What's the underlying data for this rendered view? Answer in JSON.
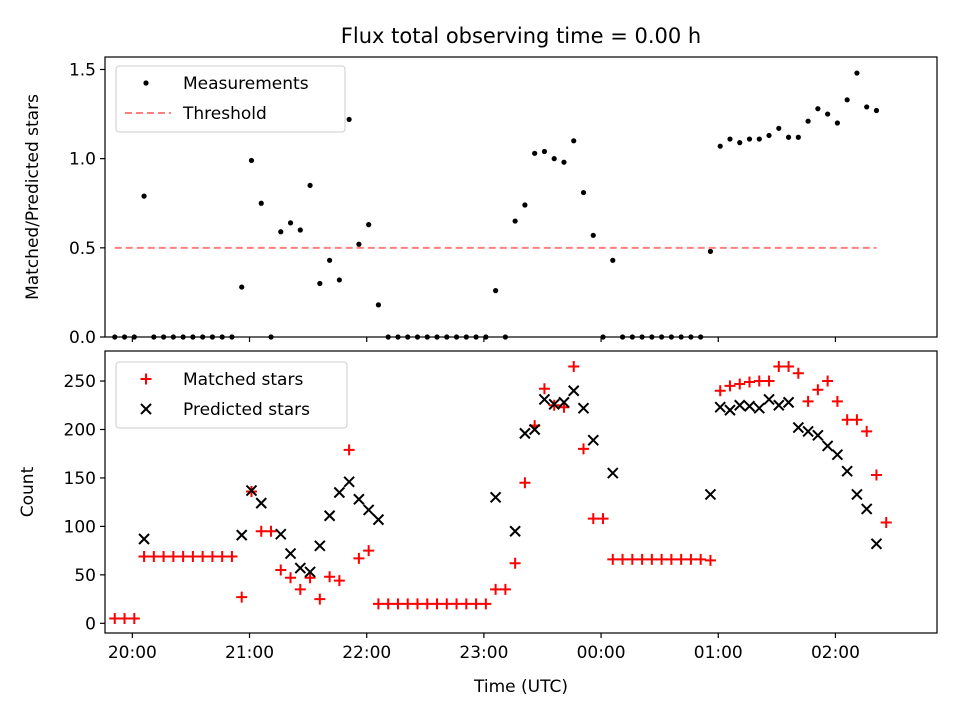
{
  "chart_data": [
    {
      "type": "scatter",
      "title": "Flux total observing time = 0.00 h",
      "xlabel": "",
      "ylabel": "Matched/Predicted stars",
      "ylim": [
        0,
        1.57
      ],
      "xlim": [
        "19:46",
        "02:52"
      ],
      "yticks": [
        0.0,
        0.5,
        1.0,
        1.5
      ],
      "ytick_labels": [
        "0.0",
        "0.5",
        "1.0",
        "1.5"
      ],
      "xticks": [
        "20:00",
        "21:00",
        "22:00",
        "23:00",
        "00:00",
        "01:00",
        "02:00"
      ],
      "show_xtick_labels": false,
      "grid": false,
      "legend": "upper-left",
      "series": [
        {
          "name": "Measurements",
          "style": "dot",
          "color": "#000000",
          "points": [
            [
              "19:51",
              0.0
            ],
            [
              "19:56",
              0.0
            ],
            [
              "20:01",
              0.0
            ],
            [
              "20:06",
              0.79
            ],
            [
              "20:11",
              0.0
            ],
            [
              "20:16",
              0.0
            ],
            [
              "20:21",
              0.0
            ],
            [
              "20:26",
              0.0
            ],
            [
              "20:31",
              0.0
            ],
            [
              "20:36",
              0.0
            ],
            [
              "20:41",
              0.0
            ],
            [
              "20:46",
              0.0
            ],
            [
              "20:51",
              0.0
            ],
            [
              "20:56",
              0.28
            ],
            [
              "21:01",
              0.99
            ],
            [
              "21:06",
              0.75
            ],
            [
              "21:11",
              0.0
            ],
            [
              "21:16",
              0.59
            ],
            [
              "21:21",
              0.64
            ],
            [
              "21:26",
              0.6
            ],
            [
              "21:31",
              0.85
            ],
            [
              "21:36",
              0.3
            ],
            [
              "21:41",
              0.43
            ],
            [
              "21:46",
              0.32
            ],
            [
              "21:51",
              1.22
            ],
            [
              "21:56",
              0.52
            ],
            [
              "22:01",
              0.63
            ],
            [
              "22:06",
              0.18
            ],
            [
              "22:11",
              0.0
            ],
            [
              "22:16",
              0.0
            ],
            [
              "22:21",
              0.0
            ],
            [
              "22:26",
              0.0
            ],
            [
              "22:31",
              0.0
            ],
            [
              "22:36",
              0.0
            ],
            [
              "22:41",
              0.0
            ],
            [
              "22:46",
              0.0
            ],
            [
              "22:51",
              0.0
            ],
            [
              "22:56",
              0.0
            ],
            [
              "23:01",
              0.0
            ],
            [
              "23:06",
              0.26
            ],
            [
              "23:11",
              0.0
            ],
            [
              "23:16",
              0.65
            ],
            [
              "23:21",
              0.74
            ],
            [
              "23:26",
              1.03
            ],
            [
              "23:31",
              1.04
            ],
            [
              "23:36",
              1.0
            ],
            [
              "23:41",
              0.98
            ],
            [
              "23:46",
              1.1
            ],
            [
              "23:51",
              0.81
            ],
            [
              "23:56",
              0.57
            ],
            [
              "00:01",
              0.0
            ],
            [
              "00:06",
              0.43
            ],
            [
              "00:11",
              0.0
            ],
            [
              "00:16",
              0.0
            ],
            [
              "00:21",
              0.0
            ],
            [
              "00:26",
              0.0
            ],
            [
              "00:31",
              0.0
            ],
            [
              "00:36",
              0.0
            ],
            [
              "00:41",
              0.0
            ],
            [
              "00:46",
              0.0
            ],
            [
              "00:51",
              0.0
            ],
            [
              "00:56",
              0.48
            ],
            [
              "01:01",
              1.07
            ],
            [
              "01:06",
              1.11
            ],
            [
              "01:11",
              1.09
            ],
            [
              "01:16",
              1.11
            ],
            [
              "01:21",
              1.11
            ],
            [
              "01:26",
              1.13
            ],
            [
              "01:31",
              1.17
            ],
            [
              "01:36",
              1.12
            ],
            [
              "01:41",
              1.12
            ],
            [
              "01:46",
              1.21
            ],
            [
              "01:51",
              1.28
            ],
            [
              "01:56",
              1.25
            ],
            [
              "02:01",
              1.2
            ],
            [
              "02:06",
              1.33
            ],
            [
              "02:11",
              1.48
            ],
            [
              "02:16",
              1.29
            ],
            [
              "02:21",
              1.27
            ]
          ]
        },
        {
          "name": "Threshold",
          "style": "dashed-line",
          "color": "#ff7f7f",
          "points": [
            [
              "19:51",
              0.5
            ],
            [
              "02:21",
              0.5
            ]
          ]
        }
      ]
    },
    {
      "type": "scatter",
      "title": "",
      "xlabel": "Time (UTC)",
      "ylabel": "Count",
      "ylim": [
        -10,
        281
      ],
      "xlim": [
        "19:46",
        "02:52"
      ],
      "yticks": [
        0,
        50,
        100,
        150,
        200,
        250
      ],
      "ytick_labels": [
        "0",
        "50",
        "100",
        "150",
        "200",
        "250"
      ],
      "xticks": [
        "20:00",
        "21:00",
        "22:00",
        "23:00",
        "00:00",
        "01:00",
        "02:00"
      ],
      "xtick_labels": [
        "20:00",
        "21:00",
        "22:00",
        "23:00",
        "00:00",
        "01:00",
        "02:00"
      ],
      "grid": false,
      "legend": "upper-left",
      "series": [
        {
          "name": "Matched stars",
          "style": "plus",
          "color": "#ff0000",
          "points": [
            [
              "19:51",
              5
            ],
            [
              "19:56",
              5
            ],
            [
              "20:01",
              5
            ],
            [
              "20:06",
              69
            ],
            [
              "20:11",
              69
            ],
            [
              "20:16",
              69
            ],
            [
              "20:21",
              69
            ],
            [
              "20:26",
              69
            ],
            [
              "20:31",
              69
            ],
            [
              "20:36",
              69
            ],
            [
              "20:41",
              69
            ],
            [
              "20:46",
              69
            ],
            [
              "20:51",
              69
            ],
            [
              "20:56",
              27
            ],
            [
              "21:01",
              136
            ],
            [
              "21:06",
              95
            ],
            [
              "21:11",
              95
            ],
            [
              "21:16",
              55
            ],
            [
              "21:21",
              47
            ],
            [
              "21:26",
              35
            ],
            [
              "21:31",
              47
            ],
            [
              "21:36",
              25
            ],
            [
              "21:41",
              48
            ],
            [
              "21:46",
              44
            ],
            [
              "21:51",
              179
            ],
            [
              "21:56",
              67
            ],
            [
              "22:01",
              75
            ],
            [
              "22:06",
              20
            ],
            [
              "22:11",
              20
            ],
            [
              "22:16",
              20
            ],
            [
              "22:21",
              20
            ],
            [
              "22:26",
              20
            ],
            [
              "22:31",
              20
            ],
            [
              "22:36",
              20
            ],
            [
              "22:41",
              20
            ],
            [
              "22:46",
              20
            ],
            [
              "22:51",
              20
            ],
            [
              "22:56",
              20
            ],
            [
              "23:01",
              20
            ],
            [
              "23:06",
              35
            ],
            [
              "23:11",
              35
            ],
            [
              "23:16",
              62
            ],
            [
              "23:21",
              145
            ],
            [
              "23:26",
              204
            ],
            [
              "23:31",
              242
            ],
            [
              "23:36",
              225
            ],
            [
              "23:41",
              223
            ],
            [
              "23:46",
              265
            ],
            [
              "23:51",
              180
            ],
            [
              "23:56",
              108
            ],
            [
              "00:01",
              108
            ],
            [
              "00:06",
              66
            ],
            [
              "00:11",
              66
            ],
            [
              "00:16",
              66
            ],
            [
              "00:21",
              66
            ],
            [
              "00:26",
              66
            ],
            [
              "00:31",
              66
            ],
            [
              "00:36",
              66
            ],
            [
              "00:41",
              66
            ],
            [
              "00:46",
              66
            ],
            [
              "00:51",
              66
            ],
            [
              "00:56",
              65
            ],
            [
              "01:01",
              240
            ],
            [
              "01:06",
              245
            ],
            [
              "01:11",
              247
            ],
            [
              "01:16",
              249
            ],
            [
              "01:21",
              250
            ],
            [
              "01:26",
              250
            ],
            [
              "01:31",
              265
            ],
            [
              "01:36",
              265
            ],
            [
              "01:41",
              258
            ],
            [
              "01:46",
              229
            ],
            [
              "01:51",
              241
            ],
            [
              "01:56",
              250
            ],
            [
              "02:01",
              229
            ],
            [
              "02:06",
              210
            ],
            [
              "02:11",
              210
            ],
            [
              "02:16",
              198
            ],
            [
              "02:21",
              153
            ],
            [
              "02:26",
              104
            ]
          ]
        },
        {
          "name": "Predicted stars",
          "style": "x",
          "color": "#000000",
          "points": [
            [
              "20:06",
              87
            ],
            [
              "20:56",
              91
            ],
            [
              "21:01",
              137
            ],
            [
              "21:06",
              124
            ],
            [
              "21:16",
              92
            ],
            [
              "21:21",
              72
            ],
            [
              "21:26",
              57
            ],
            [
              "21:31",
              53
            ],
            [
              "21:36",
              80
            ],
            [
              "21:41",
              111
            ],
            [
              "21:46",
              135
            ],
            [
              "21:51",
              146
            ],
            [
              "21:56",
              128
            ],
            [
              "22:01",
              117
            ],
            [
              "22:06",
              107
            ],
            [
              "23:06",
              130
            ],
            [
              "23:16",
              95
            ],
            [
              "23:21",
              196
            ],
            [
              "23:26",
              200
            ],
            [
              "23:31",
              231
            ],
            [
              "23:36",
              226
            ],
            [
              "23:41",
              228
            ],
            [
              "23:46",
              240
            ],
            [
              "23:51",
              222
            ],
            [
              "23:56",
              189
            ],
            [
              "00:06",
              155
            ],
            [
              "00:56",
              133
            ],
            [
              "01:01",
              223
            ],
            [
              "01:06",
              220
            ],
            [
              "01:11",
              225
            ],
            [
              "01:16",
              224
            ],
            [
              "01:21",
              222
            ],
            [
              "01:26",
              231
            ],
            [
              "01:31",
              225
            ],
            [
              "01:36",
              228
            ],
            [
              "01:41",
              202
            ],
            [
              "01:46",
              198
            ],
            [
              "01:51",
              194
            ],
            [
              "01:56",
              183
            ],
            [
              "02:01",
              174
            ],
            [
              "02:06",
              157
            ],
            [
              "02:11",
              133
            ],
            [
              "02:16",
              118
            ],
            [
              "02:21",
              82
            ]
          ]
        }
      ]
    }
  ]
}
